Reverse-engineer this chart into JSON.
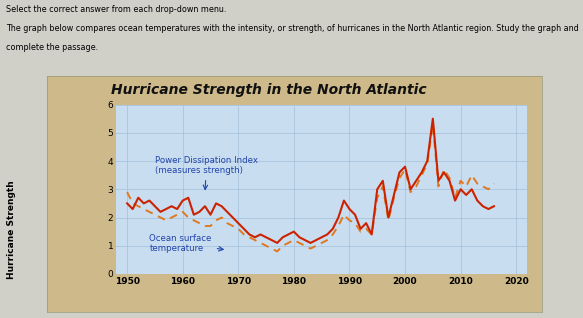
{
  "title": "Hurricane Strength in the North Atlantic",
  "xlabel_years": [
    1950,
    1960,
    1970,
    1980,
    1990,
    2000,
    2010,
    2020
  ],
  "ylabel": "Hurricane Strength",
  "ylim": [
    0,
    6
  ],
  "xlim": [
    1948,
    2022
  ],
  "bg_outer": "#cdb98a",
  "bg_inner": "#c8ddf0",
  "grid_color": "#a8c4dc",
  "title_color": "#111111",
  "pdi_color": "#cc2200",
  "ost_color": "#e07820",
  "text_color": "#2244aa",
  "intro_line1": "Select the correct answer from each drop-down menu.",
  "intro_line2": "The graph below compares ocean temperatures with the intensity, or strength, of hurricanes in the North Atlantic region. Study the graph and",
  "intro_line3": "complete the passage.",
  "pdi_label_line1": "Power Dissipation Index",
  "pdi_label_line2": "(measures strength)",
  "ost_label_line1": "Ocean surface",
  "ost_label_line2": "temperature",
  "pdi_years": [
    1950,
    1951,
    1952,
    1953,
    1954,
    1955,
    1956,
    1957,
    1958,
    1959,
    1960,
    1961,
    1962,
    1963,
    1964,
    1965,
    1966,
    1967,
    1968,
    1969,
    1970,
    1971,
    1972,
    1973,
    1974,
    1975,
    1976,
    1977,
    1978,
    1979,
    1980,
    1981,
    1982,
    1983,
    1984,
    1985,
    1986,
    1987,
    1988,
    1989,
    1990,
    1991,
    1992,
    1993,
    1994,
    1995,
    1996,
    1997,
    1998,
    1999,
    2000,
    2001,
    2002,
    2003,
    2004,
    2005,
    2006,
    2007,
    2008,
    2009,
    2010,
    2011,
    2012,
    2013,
    2014,
    2015,
    2016
  ],
  "pdi_values": [
    2.5,
    2.3,
    2.7,
    2.5,
    2.6,
    2.4,
    2.2,
    2.3,
    2.4,
    2.3,
    2.6,
    2.7,
    2.1,
    2.2,
    2.4,
    2.1,
    2.5,
    2.4,
    2.2,
    2.0,
    1.8,
    1.6,
    1.4,
    1.3,
    1.4,
    1.3,
    1.2,
    1.1,
    1.3,
    1.4,
    1.5,
    1.3,
    1.2,
    1.1,
    1.2,
    1.3,
    1.4,
    1.6,
    2.0,
    2.6,
    2.3,
    2.1,
    1.6,
    1.8,
    1.4,
    3.0,
    3.3,
    2.0,
    2.8,
    3.6,
    3.8,
    3.0,
    3.3,
    3.6,
    4.0,
    5.5,
    3.3,
    3.6,
    3.3,
    2.6,
    3.0,
    2.8,
    3.0,
    2.6,
    2.4,
    2.3,
    2.4
  ],
  "ost_years": [
    1950,
    1951,
    1952,
    1953,
    1954,
    1955,
    1956,
    1957,
    1958,
    1959,
    1960,
    1961,
    1962,
    1963,
    1964,
    1965,
    1966,
    1967,
    1968,
    1969,
    1970,
    1971,
    1972,
    1973,
    1974,
    1975,
    1976,
    1977,
    1978,
    1979,
    1980,
    1981,
    1982,
    1983,
    1984,
    1985,
    1986,
    1987,
    1988,
    1989,
    1990,
    1991,
    1992,
    1993,
    1994,
    1995,
    1996,
    1997,
    1998,
    1999,
    2000,
    2001,
    2002,
    2003,
    2004,
    2005,
    2006,
    2007,
    2008,
    2009,
    2010,
    2011,
    2012,
    2013,
    2014,
    2015,
    2016
  ],
  "ost_values": [
    2.9,
    2.5,
    2.4,
    2.3,
    2.2,
    2.1,
    2.0,
    1.9,
    2.0,
    2.1,
    2.2,
    2.0,
    1.9,
    1.8,
    1.7,
    1.7,
    1.9,
    2.0,
    1.8,
    1.7,
    1.6,
    1.4,
    1.3,
    1.2,
    1.1,
    1.0,
    0.9,
    0.8,
    1.0,
    1.1,
    1.2,
    1.1,
    1.0,
    0.9,
    1.0,
    1.1,
    1.2,
    1.4,
    1.7,
    2.1,
    1.9,
    1.8,
    1.5,
    1.6,
    1.4,
    2.7,
    3.1,
    1.9,
    2.7,
    3.4,
    3.7,
    2.9,
    3.1,
    3.5,
    3.9,
    5.3,
    3.1,
    3.7,
    3.4,
    2.7,
    3.3,
    3.1,
    3.5,
    3.2,
    3.1,
    3.0,
    3.2
  ]
}
